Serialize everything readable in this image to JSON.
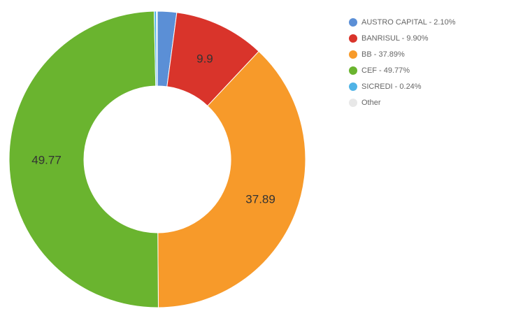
{
  "chart_data": {
    "type": "donut",
    "categories": [
      "AUSTRO CAPITAL - 2.10%",
      "BANRISUL - 9.90%",
      "BB - 37.89%",
      "CEF - 49.77%",
      "SICREDI - 0.24%",
      "Other"
    ],
    "values": [
      2.1,
      9.9,
      37.89,
      49.77,
      0.24,
      null
    ],
    "value_labels": [
      null,
      "9.9",
      "37.89",
      "49.77",
      null,
      null
    ],
    "colors": [
      "#5b8fd6",
      "#d9342b",
      "#f79a2a",
      "#6ab42f",
      "#4fb3e6",
      "#e8e8e8"
    ],
    "legend": "right"
  }
}
